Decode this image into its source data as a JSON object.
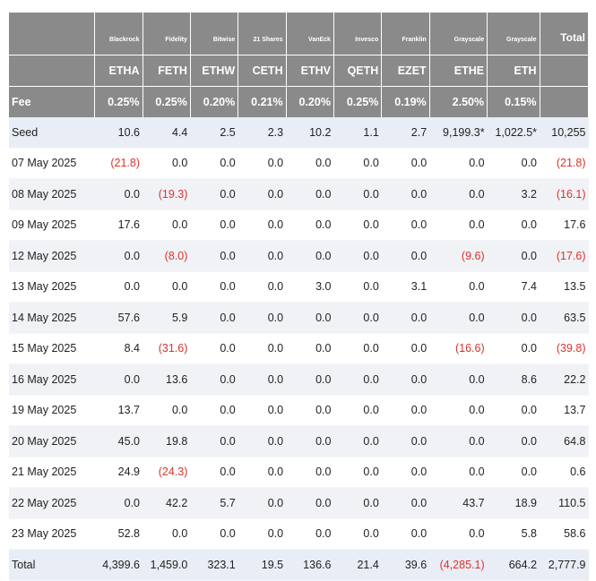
{
  "funds": [
    {
      "issuer": "Blackrock",
      "ticker": "ETHA",
      "fee": "0.25%"
    },
    {
      "issuer": "Fidelity",
      "ticker": "FETH",
      "fee": "0.25%"
    },
    {
      "issuer": "Bitwise",
      "ticker": "ETHW",
      "fee": "0.20%"
    },
    {
      "issuer": "21 Shares",
      "ticker": "CETH",
      "fee": "0.21%"
    },
    {
      "issuer": "VanEck",
      "ticker": "ETHV",
      "fee": "0.20%"
    },
    {
      "issuer": "Invesco",
      "ticker": "QETH",
      "fee": "0.25%"
    },
    {
      "issuer": "Franklin",
      "ticker": "EZET",
      "fee": "0.19%"
    },
    {
      "issuer": "Grayscale",
      "ticker": "ETHE",
      "fee": "2.50%"
    },
    {
      "issuer": "Grayscale",
      "ticker": "ETH",
      "fee": "0.15%"
    }
  ],
  "total_header": "Total",
  "fee_label": "Fee",
  "rows": [
    {
      "label": "Seed",
      "values": [
        "10.6",
        "4.4",
        "2.5",
        "2.3",
        "10.2",
        "1.1",
        "2.7",
        "9,199.3*",
        "1,022.5*",
        "10,255"
      ]
    },
    {
      "label": "07 May 2025",
      "values": [
        "(21.8)",
        "0.0",
        "0.0",
        "0.0",
        "0.0",
        "0.0",
        "0.0",
        "0.0",
        "0.0",
        "(21.8)"
      ]
    },
    {
      "label": "08 May 2025",
      "values": [
        "0.0",
        "(19.3)",
        "0.0",
        "0.0",
        "0.0",
        "0.0",
        "0.0",
        "0.0",
        "3.2",
        "(16.1)"
      ]
    },
    {
      "label": "09 May 2025",
      "values": [
        "17.6",
        "0.0",
        "0.0",
        "0.0",
        "0.0",
        "0.0",
        "0.0",
        "0.0",
        "0.0",
        "17.6"
      ]
    },
    {
      "label": "12 May 2025",
      "values": [
        "0.0",
        "(8.0)",
        "0.0",
        "0.0",
        "0.0",
        "0.0",
        "0.0",
        "(9.6)",
        "0.0",
        "(17.6)"
      ]
    },
    {
      "label": "13 May 2025",
      "values": [
        "0.0",
        "0.0",
        "0.0",
        "0.0",
        "3.0",
        "0.0",
        "3.1",
        "0.0",
        "7.4",
        "13.5"
      ]
    },
    {
      "label": "14 May 2025",
      "values": [
        "57.6",
        "5.9",
        "0.0",
        "0.0",
        "0.0",
        "0.0",
        "0.0",
        "0.0",
        "0.0",
        "63.5"
      ]
    },
    {
      "label": "15 May 2025",
      "values": [
        "8.4",
        "(31.6)",
        "0.0",
        "0.0",
        "0.0",
        "0.0",
        "0.0",
        "(16.6)",
        "0.0",
        "(39.8)"
      ]
    },
    {
      "label": "16 May 2025",
      "values": [
        "0.0",
        "13.6",
        "0.0",
        "0.0",
        "0.0",
        "0.0",
        "0.0",
        "0.0",
        "8.6",
        "22.2"
      ]
    },
    {
      "label": "19 May 2025",
      "values": [
        "13.7",
        "0.0",
        "0.0",
        "0.0",
        "0.0",
        "0.0",
        "0.0",
        "0.0",
        "0.0",
        "13.7"
      ]
    },
    {
      "label": "20 May 2025",
      "values": [
        "45.0",
        "19.8",
        "0.0",
        "0.0",
        "0.0",
        "0.0",
        "0.0",
        "0.0",
        "0.0",
        "64.8"
      ]
    },
    {
      "label": "21 May 2025",
      "values": [
        "24.9",
        "(24.3)",
        "0.0",
        "0.0",
        "0.0",
        "0.0",
        "0.0",
        "0.0",
        "0.0",
        "0.6"
      ]
    },
    {
      "label": "22 May 2025",
      "values": [
        "0.0",
        "42.2",
        "5.7",
        "0.0",
        "0.0",
        "0.0",
        "0.0",
        "43.7",
        "18.9",
        "110.5"
      ]
    },
    {
      "label": "23 May 2025",
      "values": [
        "52.8",
        "0.0",
        "0.0",
        "0.0",
        "0.0",
        "0.0",
        "0.0",
        "0.0",
        "5.8",
        "58.6"
      ]
    },
    {
      "label": "Total",
      "values": [
        "4,399.6",
        "1,459.0",
        "323.1",
        "19.5",
        "136.6",
        "21.4",
        "39.6",
        "(4,285.1)",
        "664.2",
        "2,777.9"
      ]
    }
  ],
  "colors": {
    "header_bg": "#8a8a8a",
    "header_text": "#ffffff",
    "negative": "#e0302a",
    "stripe": "#f0f2f6",
    "highlight": "#e9edf5"
  }
}
